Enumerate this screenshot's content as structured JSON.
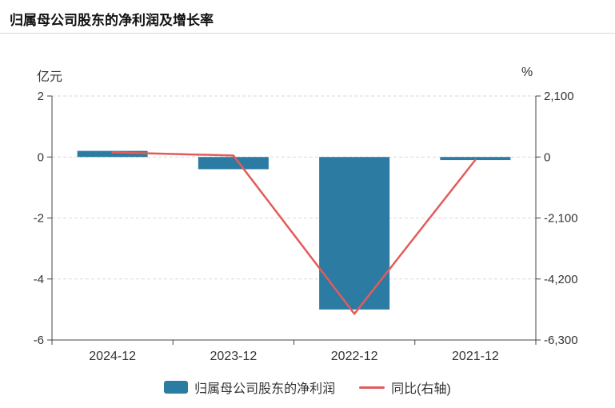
{
  "header": {
    "title": "归属母公司股东的净利润及增长率"
  },
  "chart_data": {
    "type": "bar",
    "title": "归属母公司股东的净利润及增长率",
    "categories": [
      "2024-12",
      "2023-12",
      "2022-12",
      "2021-12"
    ],
    "series": [
      {
        "name": "归属母公司股东的净利润",
        "type": "bar",
        "axis": "left",
        "values": [
          0.2,
          -0.4,
          -5.0,
          -0.1
        ],
        "color": "#2b7ba3"
      },
      {
        "name": "同比(右轴)",
        "type": "line",
        "axis": "right",
        "values": [
          160,
          50,
          -5400,
          -100
        ],
        "color": "#e25c5a"
      }
    ],
    "left_axis": {
      "unit": "亿元",
      "min": -6,
      "max": 2,
      "ticks": [
        2,
        0,
        -2,
        -4,
        -6
      ]
    },
    "right_axis": {
      "unit": "%",
      "min": -6300,
      "max": 2100,
      "ticks": [
        2100,
        0,
        -2100,
        -4200,
        -6300
      ],
      "tick_labels": [
        "2,100",
        "0",
        "-2,100",
        "-4,200",
        "-6,300"
      ]
    },
    "grid": true,
    "legend_position": "bottom"
  },
  "legend": {
    "items": [
      {
        "label": "归属母公司股东的净利润",
        "type": "bar",
        "color": "#2b7ba3"
      },
      {
        "label": "同比(右轴)",
        "type": "line",
        "color": "#e25c5a"
      }
    ]
  },
  "colors": {
    "bar": "#2b7ba3",
    "line": "#e25c5a",
    "grid": "#d9d9d9",
    "axis": "#444444",
    "text": "#333333"
  }
}
